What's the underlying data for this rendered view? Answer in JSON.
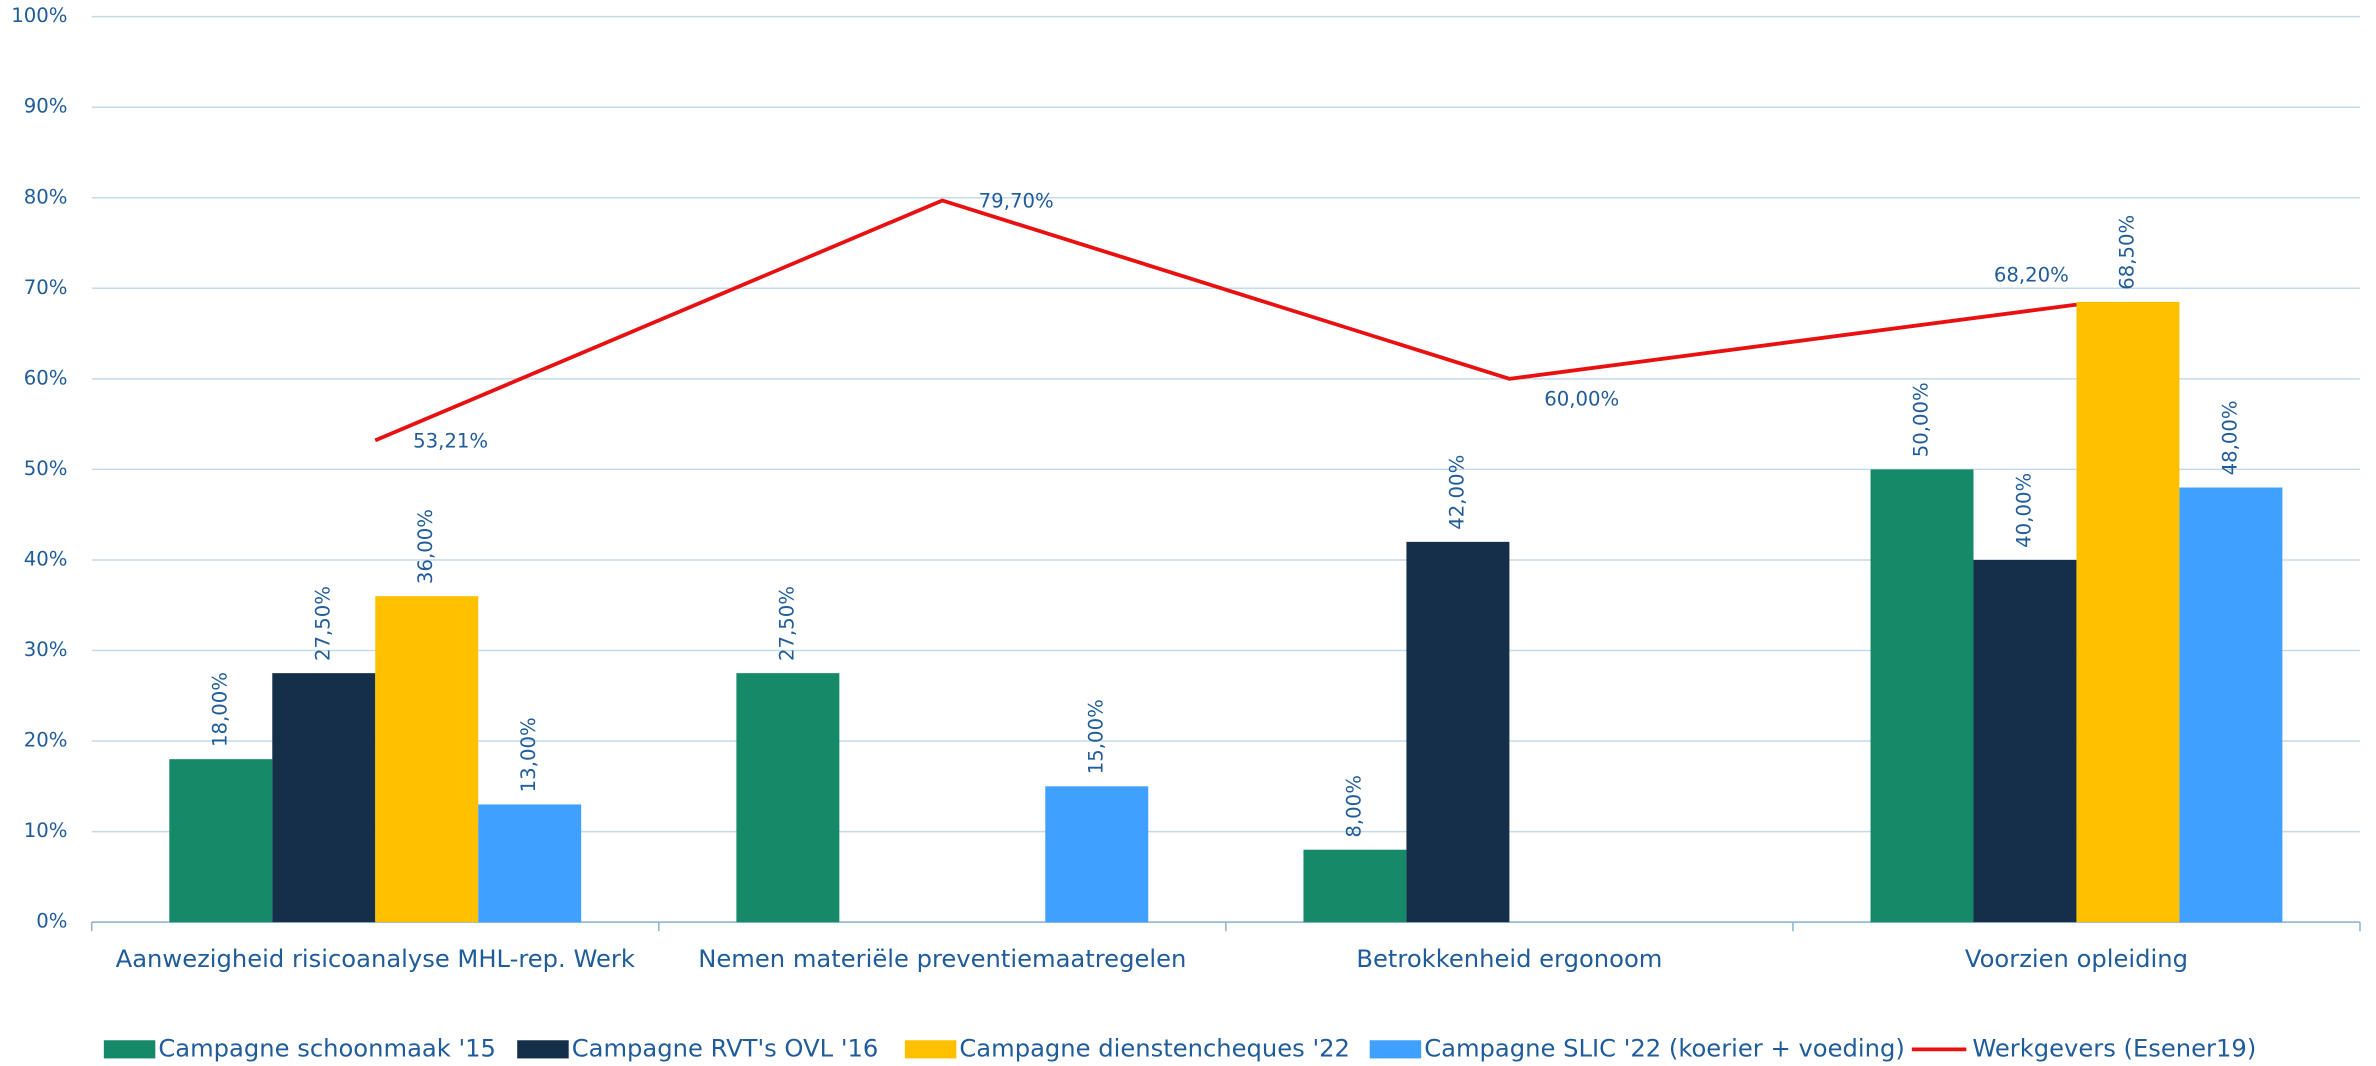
{
  "chart_data": {
    "type": "bar",
    "categories": [
      "Aanwezigheid risicoanalyse MHL-rep. Werk",
      "Nemen materiële preventiemaatregelen",
      "Betrokkenheid ergonoom",
      "Voorzien opleiding"
    ],
    "series": [
      {
        "name": "Campagne schoonmaak '15",
        "color": "#168a68",
        "values": [
          18,
          27.5,
          8,
          50
        ],
        "value_labels": [
          "18,00%",
          "27,50%",
          "8,00%",
          "50,00%"
        ]
      },
      {
        "name": "Campagne RVT's OVL '16",
        "color": "#152f4a",
        "values": [
          27.5,
          null,
          42,
          40
        ],
        "value_labels": [
          "27,50%",
          null,
          "42,00%",
          "40,00%"
        ]
      },
      {
        "name": "Campagne dienstencheques '22",
        "color": "#ffc000",
        "values": [
          36,
          null,
          null,
          68.5
        ],
        "value_labels": [
          "36,00%",
          null,
          null,
          "68,50%"
        ]
      },
      {
        "name": "Campagne SLIC '22 (koerier + voeding)",
        "color": "#3fa0ff",
        "values": [
          13,
          15,
          null,
          48
        ],
        "value_labels": [
          "13,00%",
          "15,00%",
          null,
          "48,00%"
        ]
      },
      {
        "name": "Werkgevers (Esener19)",
        "color": "#e81010",
        "type": "line",
        "values": [
          53.21,
          79.7,
          60,
          68.2
        ],
        "value_labels": [
          "53,21%",
          "79,70%",
          "60,00%",
          "68,20%"
        ]
      }
    ],
    "ylim": [
      0,
      100
    ],
    "yticks": [
      {
        "value": 0,
        "label": "0%"
      },
      {
        "value": 10,
        "label": "10%"
      },
      {
        "value": 20,
        "label": "20%"
      },
      {
        "value": 30,
        "label": "30%"
      },
      {
        "value": 40,
        "label": "40%"
      },
      {
        "value": 50,
        "label": "50%"
      },
      {
        "value": 60,
        "label": "60%"
      },
      {
        "value": 70,
        "label": "70%"
      },
      {
        "value": 80,
        "label": "80%"
      },
      {
        "value": 90,
        "label": "90%"
      },
      {
        "value": 100,
        "label": "100%"
      }
    ],
    "grid": true,
    "legend": "bottom"
  }
}
